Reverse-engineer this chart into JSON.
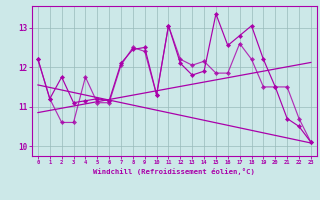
{
  "xlabel": "Windchill (Refroidissement éolien,°C)",
  "x": [
    0,
    1,
    2,
    3,
    4,
    5,
    6,
    7,
    8,
    9,
    10,
    11,
    12,
    13,
    14,
    15,
    16,
    17,
    18,
    19,
    20,
    21,
    22,
    23
  ],
  "line1_y": [
    12.2,
    11.2,
    11.75,
    11.1,
    11.15,
    11.2,
    11.15,
    12.1,
    12.45,
    12.5,
    11.3,
    13.05,
    12.1,
    11.8,
    11.9,
    13.35,
    12.55,
    12.8,
    13.05,
    12.2,
    11.5,
    10.7,
    10.5,
    10.1
  ],
  "line2_y": [
    12.2,
    11.2,
    10.6,
    10.6,
    11.75,
    11.1,
    11.1,
    12.05,
    12.5,
    12.4,
    11.3,
    13.05,
    12.2,
    12.05,
    12.15,
    11.85,
    11.85,
    12.6,
    12.2,
    11.5,
    11.5,
    11.5,
    10.7,
    10.1
  ],
  "trend1_x": [
    0,
    23
  ],
  "trend1_y": [
    10.85,
    12.12
  ],
  "trend2_x": [
    0,
    23
  ],
  "trend2_y": [
    11.55,
    10.08
  ],
  "line_color": "#aa00aa",
  "bg_color": "#cce8e8",
  "grid_color": "#99bbbb",
  "spine_color": "#aa00aa",
  "ylim": [
    9.75,
    13.55
  ],
  "yticks": [
    10,
    11,
    12,
    13
  ],
  "xlim": [
    -0.5,
    23.5
  ]
}
